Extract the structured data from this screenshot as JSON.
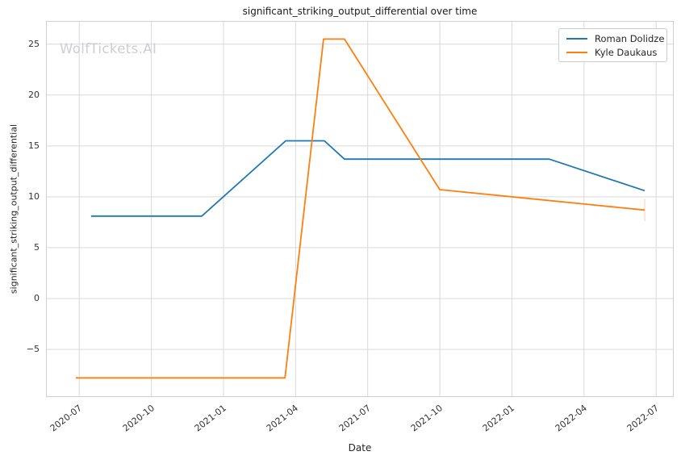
{
  "window": {
    "background": "#ffffff"
  },
  "watermark": {
    "text": "WolfTickets.AI",
    "color": "#ccced1"
  },
  "chart_data": {
    "type": "line",
    "title": "significant_striking_output_differential over time",
    "xlabel": "Date",
    "ylabel": "significant_striking_output_differential",
    "grid": true,
    "grid_color": "#d9d9d9",
    "legend_position": "upper right",
    "x_axis": {
      "tick_labels": [
        "2020-07",
        "2020-10",
        "2021-01",
        "2021-04",
        "2021-07",
        "2021-10",
        "2022-01",
        "2022-04",
        "2022-07"
      ],
      "range_months_from_2020_07": [
        -1.35,
        24.7
      ]
    },
    "y_axis": {
      "ticks": [
        -5,
        0,
        5,
        10,
        15,
        20,
        25
      ],
      "range": [
        -9.6,
        27.2
      ]
    },
    "series": [
      {
        "name": "Roman Dolidze",
        "color": "#1f77b4",
        "points": [
          {
            "date": "2020-07-16",
            "value": 8.1
          },
          {
            "date": "2020-12-04",
            "value": 8.1
          },
          {
            "date": "2021-03-19",
            "value": 15.5
          },
          {
            "date": "2021-05-07",
            "value": 15.5
          },
          {
            "date": "2021-06-02",
            "value": 13.7
          },
          {
            "date": "2022-02-18",
            "value": 13.7
          },
          {
            "date": "2022-06-17",
            "value": 10.6
          }
        ]
      },
      {
        "name": "Kyle Daukaus",
        "color": "#ff7f0e",
        "end_tick": true,
        "points": [
          {
            "date": "2020-06-27",
            "value": -7.8
          },
          {
            "date": "2021-03-18",
            "value": -7.8
          },
          {
            "date": "2021-05-06",
            "value": 25.5
          },
          {
            "date": "2021-06-02",
            "value": 25.5
          },
          {
            "date": "2021-10-01",
            "value": 10.7
          },
          {
            "date": "2022-06-17",
            "value": 8.7
          }
        ]
      }
    ]
  }
}
